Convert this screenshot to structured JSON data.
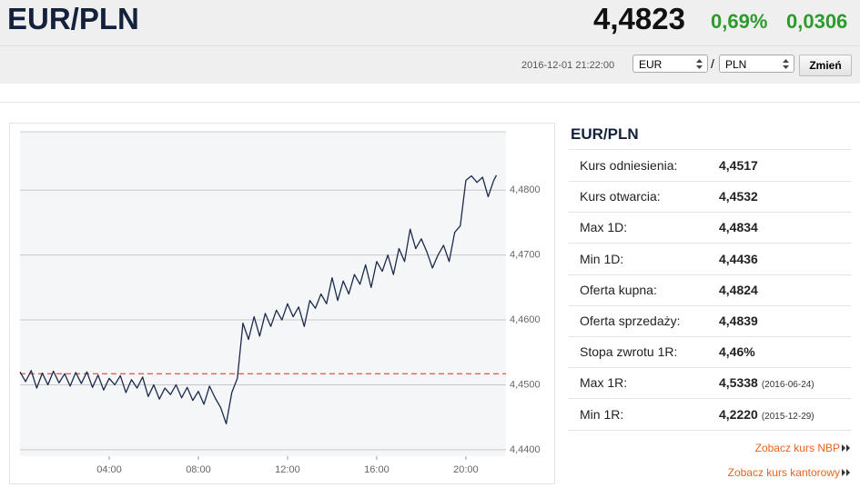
{
  "header": {
    "title": "EUR/PLN",
    "price": "4,4823",
    "change_pct": "0,69%",
    "change_abs": "0,0306",
    "timestamp": "2016-12-01 21:22:00",
    "base_currency": "EUR",
    "separator": "/",
    "quote_currency": "PLN",
    "button": "Zmień"
  },
  "chart_data": {
    "type": "line",
    "color": "#1b2a4a",
    "x": [
      0,
      0.25,
      0.5,
      0.75,
      1,
      1.25,
      1.5,
      1.75,
      2,
      2.25,
      2.5,
      2.75,
      3,
      3.25,
      3.5,
      3.75,
      4,
      4.25,
      4.5,
      4.75,
      5,
      5.25,
      5.5,
      5.75,
      6,
      6.25,
      6.5,
      6.75,
      7,
      7.25,
      7.5,
      7.75,
      8,
      8.25,
      8.5,
      8.75,
      9,
      9.25,
      9.5,
      9.75,
      10,
      10.25,
      10.5,
      10.75,
      11,
      11.25,
      11.5,
      11.75,
      12,
      12.25,
      12.5,
      12.75,
      13,
      13.25,
      13.5,
      13.75,
      14,
      14.25,
      14.5,
      14.75,
      15,
      15.25,
      15.5,
      15.75,
      16,
      16.25,
      16.5,
      16.75,
      17,
      17.25,
      17.5,
      17.75,
      18,
      18.25,
      18.5,
      18.75,
      19,
      19.25,
      19.5,
      19.75,
      20,
      20.25,
      20.5,
      20.75,
      21,
      21.25,
      21.37
    ],
    "values": [
      4.452,
      4.4505,
      4.4522,
      4.4495,
      4.4518,
      4.45,
      4.4521,
      4.4503,
      4.4517,
      4.4498,
      4.4519,
      4.4502,
      4.452,
      4.4496,
      4.4515,
      4.4492,
      4.451,
      4.45,
      4.4514,
      4.4488,
      4.4508,
      4.4495,
      4.4512,
      4.4482,
      4.45,
      4.4478,
      4.4495,
      4.4485,
      4.45,
      4.448,
      4.4496,
      4.4476,
      4.449,
      4.447,
      4.4498,
      4.448,
      4.4465,
      4.444,
      4.4488,
      4.451,
      4.4595,
      4.457,
      4.4605,
      4.4575,
      4.461,
      4.459,
      4.4615,
      4.46,
      4.4625,
      4.4605,
      4.462,
      4.459,
      4.463,
      4.4618,
      4.464,
      4.4625,
      4.4665,
      4.463,
      4.466,
      4.464,
      4.467,
      4.4655,
      4.4685,
      4.465,
      4.469,
      4.4675,
      4.47,
      4.467,
      4.471,
      4.469,
      4.474,
      4.471,
      4.4725,
      4.4705,
      4.468,
      4.47,
      4.4715,
      4.469,
      4.4735,
      4.4745,
      4.4815,
      4.4822,
      4.4812,
      4.482,
      4.479,
      4.4815,
      4.4823
    ],
    "xlim": [
      0,
      21.8
    ],
    "xticks": [
      {
        "value": 4,
        "label": "04:00"
      },
      {
        "value": 8,
        "label": "08:00"
      },
      {
        "value": 12,
        "label": "12:00"
      },
      {
        "value": 16,
        "label": "16:00"
      },
      {
        "value": 20,
        "label": "20:00"
      }
    ],
    "ylim": [
      4.439,
      4.489
    ],
    "yticks": [
      {
        "value": 4.44,
        "label": "4,4400"
      },
      {
        "value": 4.45,
        "label": "4,4500"
      },
      {
        "value": 4.46,
        "label": "4,4600"
      },
      {
        "value": 4.47,
        "label": "4,4700"
      },
      {
        "value": 4.48,
        "label": "4,4800"
      }
    ],
    "grid": true,
    "reference_line": 4.4517,
    "reference_color": "#e85c5c"
  },
  "stats": {
    "title": "EUR/PLN",
    "rows": [
      {
        "label": "Kurs odniesienia:",
        "value": "4,4517"
      },
      {
        "label": "Kurs otwarcia:",
        "value": "4,4532"
      },
      {
        "label": "Max 1D:",
        "value": "4,4834"
      },
      {
        "label": "Min 1D:",
        "value": "4,4436"
      },
      {
        "label": "Oferta kupna:",
        "value": "4,4824"
      },
      {
        "label": "Oferta sprzedaży:",
        "value": "4,4839"
      },
      {
        "label": "Stopa zwrotu 1R:",
        "value": "4,46%"
      },
      {
        "label": "Max 1R:",
        "value": "4,5338",
        "note": "(2016-06-24)"
      },
      {
        "label": "Min 1R:",
        "value": "4,2220",
        "note": "(2015-12-29)"
      }
    ]
  },
  "links": [
    "Zobacz kurs NBP",
    "Zobacz kurs kantorowy"
  ]
}
